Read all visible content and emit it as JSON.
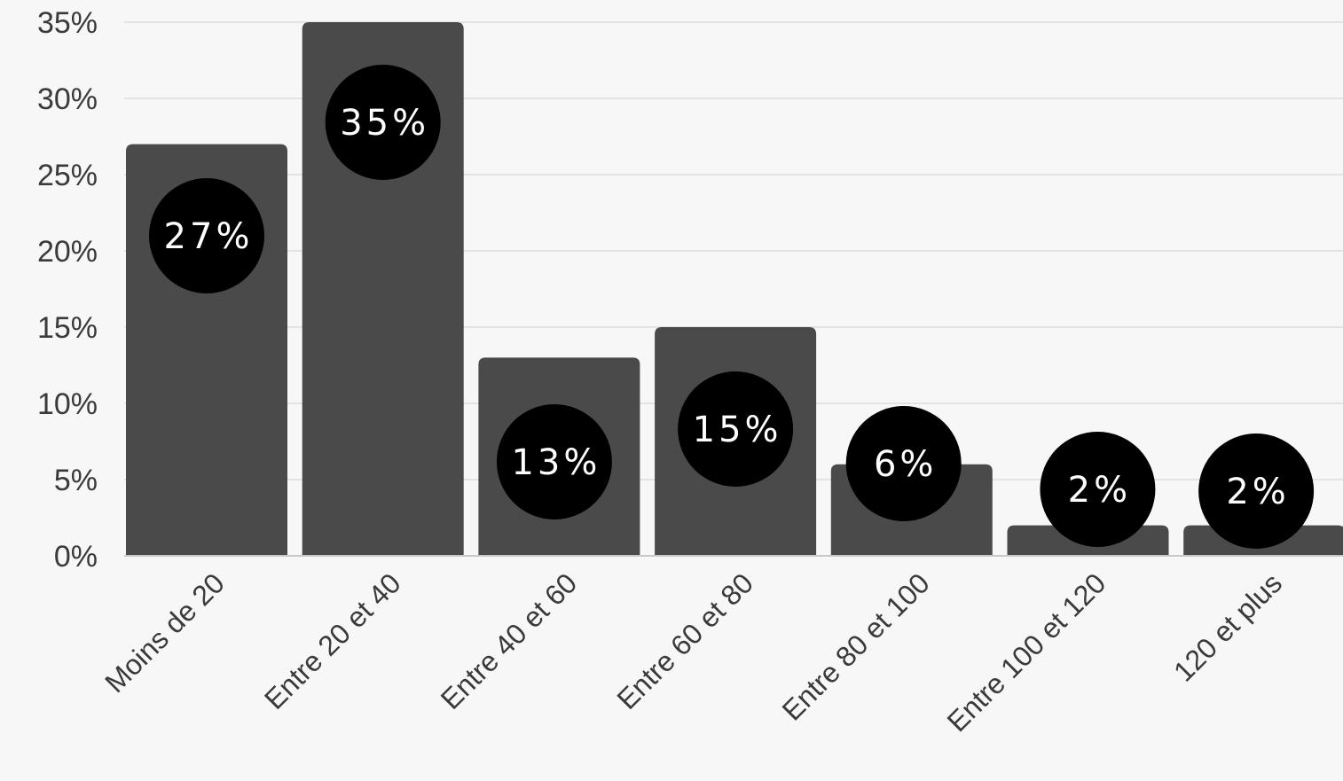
{
  "chart_data": {
    "type": "bar",
    "categories": [
      "Moins de 20",
      "Entre 20 et 40",
      "Entre 40 et 60",
      "Entre 60 et 80",
      "Entre 80 et 100",
      "Entre 100 et 120",
      "120 et plus"
    ],
    "values": [
      27,
      35,
      13,
      15,
      6,
      2,
      2
    ],
    "data_labels": [
      "27%",
      "35%",
      "13%",
      "15%",
      "6%",
      "2%",
      "2%"
    ],
    "y_ticks": [
      "0%",
      "5%",
      "10%",
      "15%",
      "20%",
      "25%",
      "30%",
      "35%"
    ],
    "ylim": [
      0,
      35
    ],
    "grid": true,
    "legend": "none",
    "colors": {
      "bar": "#4a4a4a",
      "label_bubble": "#000000",
      "label_text": "#ffffff",
      "background": "#f7f7f7",
      "grid": "#e3e3e3"
    }
  }
}
